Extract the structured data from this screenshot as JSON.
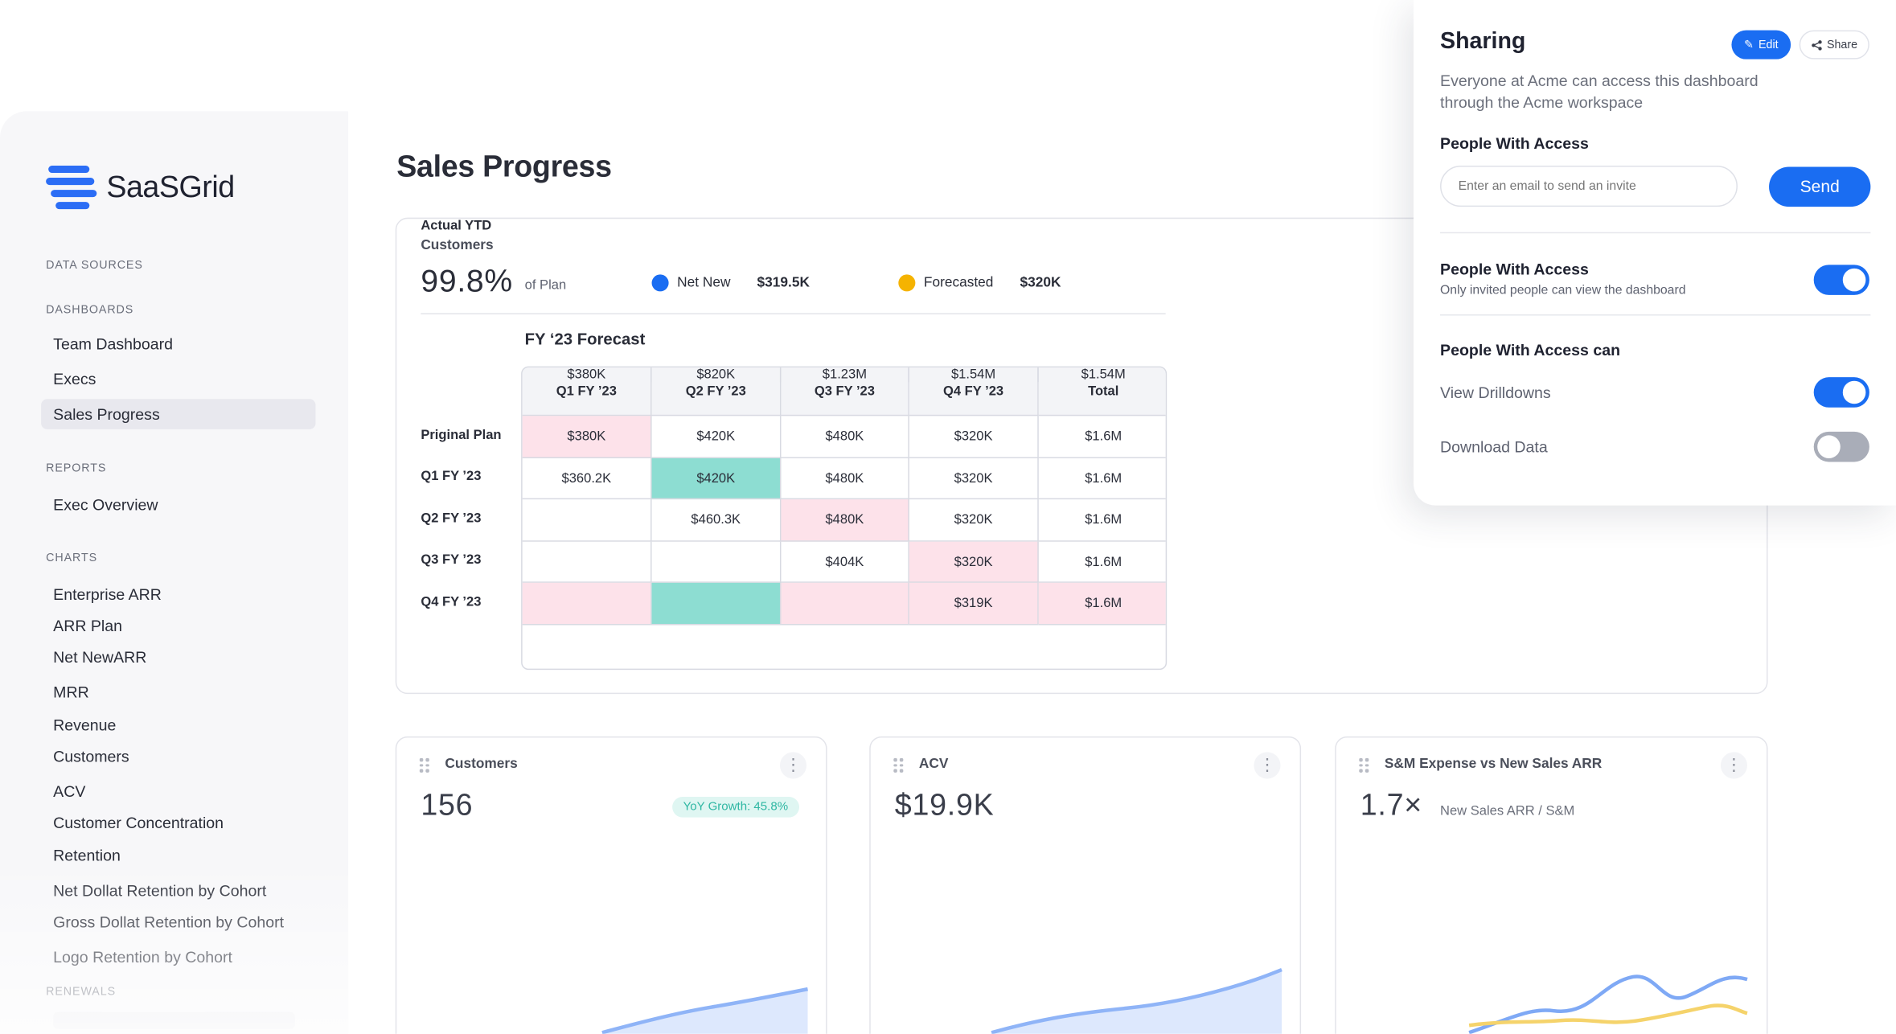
{
  "logo": {
    "text": "SaaSGrid"
  },
  "sidebar": {
    "sections": {
      "data_sources": "DATA SOURCES",
      "dashboards": "DASHBOARDS",
      "reports": "REPORTS",
      "charts": "CHARTS",
      "renewals": "RENEWALS"
    },
    "dashboards": [
      "Team Dashboard",
      "Execs",
      "Sales Progress"
    ],
    "active_item": "Sales Progress",
    "reports": [
      "Exec Overview"
    ],
    "charts": [
      "Enterprise ARR",
      "ARR Plan",
      "Net NewARR",
      "MRR",
      "Revenue",
      "Customers",
      "ACV",
      "Customer Concentration",
      "Retention",
      "Net Dollat Retention by Cohort",
      "Gross Dollat Retention by Cohort",
      "Logo Retention by Cohort"
    ]
  },
  "main": {
    "title": "Sales Progress",
    "summary": {
      "label": "Customers",
      "value": "99.8%",
      "sub": "of Plan",
      "legend": [
        {
          "name": "Net New",
          "value": "$319.5K",
          "color": "#1a6df2"
        },
        {
          "name": "Forecasted",
          "value": "$320K",
          "color": "#f5b301"
        }
      ]
    },
    "forecast": {
      "title": "FY ‘23 Forecast",
      "columns": [
        "Q1 FY ’23",
        "Q2 FY ’23",
        "Q3 FY ’23",
        "Q4 FY ’23",
        "Total"
      ],
      "rows": [
        {
          "label": "Priginal Plan",
          "cells": [
            "$380K",
            "$420K",
            "$480K",
            "$320K",
            "$1.6M"
          ]
        },
        {
          "label": "Q1 FY ’23",
          "cells": [
            "$360.2K",
            "$420K",
            "$480K",
            "$320K",
            "$1.6M"
          ]
        },
        {
          "label": "Q2 FY ’23",
          "cells": [
            "",
            "$460.3K",
            "$480K",
            "$320K",
            "$1.6M"
          ]
        },
        {
          "label": "Q3 FY ’23",
          "cells": [
            "",
            "",
            "$404K",
            "$320K",
            "$1.6M"
          ]
        },
        {
          "label": "Q4 FY ’23",
          "cells": [
            "",
            "",
            "",
            "$319K",
            "$1.6M"
          ]
        },
        {
          "label": "Actual YTD",
          "cells": [
            "$380K",
            "$820K",
            "$1.23M",
            "$1.54M",
            "$1.54M"
          ]
        }
      ]
    },
    "cards": [
      {
        "title": "Customers",
        "value": "156",
        "badge": "YoY Growth: 45.8%"
      },
      {
        "title": "ACV",
        "value": "$19.9K"
      },
      {
        "title": "S&M Expense vs New Sales ARR",
        "value": "1.7×",
        "sub": "New Sales ARR / S&M"
      }
    ]
  },
  "sharing": {
    "title": "Sharing",
    "edit_label": "Edit",
    "share_label": "Share",
    "description": "Everyone at Acme can access this dashboard through the Acme workspace",
    "people_heading": "People With Access",
    "email_placeholder": "Enter an email to send an invite",
    "send_label": "Send",
    "access_toggle": {
      "label": "People With Access",
      "sub": "Only invited people can view the dashboard",
      "on": true
    },
    "can_heading": "People With Access can",
    "permissions": [
      {
        "label": "View Drilldowns",
        "on": true
      },
      {
        "label": "Download Data",
        "on": false
      }
    ]
  }
}
